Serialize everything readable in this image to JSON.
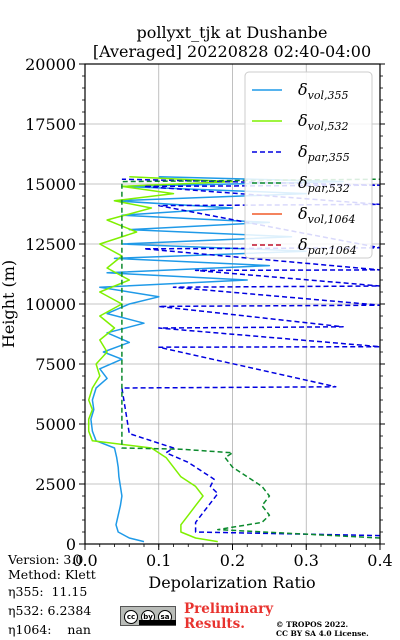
{
  "chart_data": {
    "type": "line",
    "title": [
      "pollyxt_tjk at Dushanbe",
      "[Averaged] 20220828 02:40-04:00"
    ],
    "xlabel": "Depolarization Ratio",
    "ylabel": "Height (m)",
    "xlim": [
      0,
      0.4
    ],
    "ylim": [
      0,
      20000
    ],
    "xticks": [
      "0.0",
      "0.1",
      "0.2",
      "0.3",
      "0.4"
    ],
    "yticks": [
      "0",
      "2500",
      "5000",
      "7500",
      "10000",
      "12500",
      "15000",
      "17500",
      "20000"
    ],
    "xtick_values": [
      0,
      0.1,
      0.2,
      0.3,
      0.4
    ],
    "ytick_values": [
      0,
      2500,
      5000,
      7500,
      10000,
      12500,
      15000,
      17500,
      20000
    ],
    "grid": true,
    "legend_position": "top-right",
    "series": [
      {
        "name": "δvol,355",
        "label_main": "δ",
        "label_sub": "vol,355",
        "color": "#1f9ae8",
        "dash": "solid",
        "points": [
          [
            0.08,
            100
          ],
          [
            0.06,
            250
          ],
          [
            0.045,
            500
          ],
          [
            0.042,
            800
          ],
          [
            0.045,
            1200
          ],
          [
            0.048,
            1600
          ],
          [
            0.05,
            2000
          ],
          [
            0.048,
            2400
          ],
          [
            0.046,
            2800
          ],
          [
            0.045,
            3200
          ],
          [
            0.043,
            3600
          ],
          [
            0.04,
            4000
          ],
          [
            0.015,
            4300
          ],
          [
            0.01,
            4700
          ],
          [
            0.008,
            5200
          ],
          [
            0.012,
            5600
          ],
          [
            0.01,
            6000
          ],
          [
            0.015,
            6500
          ],
          [
            0.03,
            6900
          ],
          [
            0.02,
            7300
          ],
          [
            0.05,
            7700
          ],
          [
            0.025,
            8000
          ],
          [
            0.06,
            8400
          ],
          [
            0.03,
            8800
          ],
          [
            0.08,
            9200
          ],
          [
            0.03,
            9600
          ],
          [
            0.06,
            10000
          ],
          [
            0.1,
            10300
          ],
          [
            0.02,
            10700
          ],
          [
            0.22,
            11000
          ],
          [
            0.03,
            11300
          ],
          [
            0.25,
            11600
          ],
          [
            0.04,
            11900
          ],
          [
            0.3,
            12200
          ],
          [
            0.05,
            12500
          ],
          [
            0.28,
            12800
          ],
          [
            0.06,
            13100
          ],
          [
            0.25,
            13400
          ],
          [
            0.05,
            13700
          ],
          [
            0.2,
            14000
          ],
          [
            0.04,
            14300
          ],
          [
            0.3,
            14600
          ],
          [
            0.05,
            14900
          ],
          [
            0.35,
            15100
          ],
          [
            0.1,
            15300
          ]
        ]
      },
      {
        "name": "δvol,532",
        "label_main": "δ",
        "label_sub": "vol,532",
        "color": "#7ff000",
        "dash": "solid",
        "points": [
          [
            0.18,
            100
          ],
          [
            0.15,
            250
          ],
          [
            0.13,
            500
          ],
          [
            0.13,
            800
          ],
          [
            0.14,
            1200
          ],
          [
            0.15,
            1600
          ],
          [
            0.16,
            2000
          ],
          [
            0.15,
            2400
          ],
          [
            0.13,
            2800
          ],
          [
            0.12,
            3200
          ],
          [
            0.11,
            3600
          ],
          [
            0.09,
            4000
          ],
          [
            0.01,
            4300
          ],
          [
            0.005,
            4700
          ],
          [
            0.005,
            5200
          ],
          [
            0.01,
            5600
          ],
          [
            0.005,
            6000
          ],
          [
            0.01,
            6500
          ],
          [
            0.02,
            7000
          ],
          [
            0.015,
            7500
          ],
          [
            0.03,
            8000
          ],
          [
            0.02,
            8500
          ],
          [
            0.04,
            9000
          ],
          [
            0.02,
            9500
          ],
          [
            0.05,
            10000
          ],
          [
            0.02,
            10500
          ],
          [
            0.06,
            11000
          ],
          [
            0.03,
            11500
          ],
          [
            0.05,
            12000
          ],
          [
            0.02,
            12500
          ],
          [
            0.07,
            13000
          ],
          [
            0.03,
            13500
          ],
          [
            0.09,
            14000
          ],
          [
            0.04,
            14300
          ],
          [
            0.12,
            14600
          ],
          [
            0.05,
            14900
          ],
          [
            0.2,
            15100
          ],
          [
            0.06,
            15300
          ]
        ]
      },
      {
        "name": "δpar,355",
        "label_main": "δ",
        "label_sub": "par,355",
        "color": "#0000e0",
        "dash": "dashed",
        "points": [
          [
            0.4,
            350
          ],
          [
            0.15,
            500
          ],
          [
            0.15,
            900
          ],
          [
            0.16,
            1300
          ],
          [
            0.17,
            1700
          ],
          [
            0.18,
            2100
          ],
          [
            0.17,
            2400
          ],
          [
            0.175,
            2700
          ],
          [
            0.16,
            3000
          ],
          [
            0.14,
            3400
          ],
          [
            0.11,
            3800
          ],
          [
            0.12,
            4000
          ],
          [
            0.06,
            4600
          ],
          [
            0.05,
            6500
          ],
          [
            0.34,
            6550
          ],
          [
            0.1,
            8200
          ],
          [
            0.4,
            8220
          ],
          [
            0.1,
            9000
          ],
          [
            0.35,
            9050
          ],
          [
            0.1,
            9900
          ],
          [
            0.4,
            9950
          ],
          [
            0.12,
            10700
          ],
          [
            0.4,
            10750
          ],
          [
            0.15,
            11400
          ],
          [
            0.4,
            11420
          ],
          [
            0.08,
            12300
          ],
          [
            0.4,
            12340
          ],
          [
            0.1,
            14100
          ],
          [
            0.4,
            14150
          ],
          [
            0.08,
            14900
          ],
          [
            0.4,
            14950
          ],
          [
            0.05,
            15200
          ]
        ]
      },
      {
        "name": "δpar,532",
        "label_main": "δ",
        "label_sub": "par,532",
        "color": "#0c8a2d",
        "dash": "dashed",
        "points": [
          [
            0.4,
            250
          ],
          [
            0.18,
            600
          ],
          [
            0.24,
            900
          ],
          [
            0.25,
            1200
          ],
          [
            0.24,
            1600
          ],
          [
            0.25,
            2000
          ],
          [
            0.24,
            2400
          ],
          [
            0.22,
            2800
          ],
          [
            0.2,
            3200
          ],
          [
            0.19,
            3600
          ],
          [
            0.2,
            3800
          ],
          [
            0.13,
            3950
          ],
          [
            0.05,
            4000
          ],
          [
            0.05,
            15100
          ],
          [
            0.4,
            15200
          ]
        ]
      },
      {
        "name": "δvol,1064",
        "label_main": "δ",
        "label_sub": "vol,1064",
        "color": "#f05a28",
        "dash": "solid",
        "points": []
      },
      {
        "name": "δpar,1064",
        "label_main": "δ",
        "label_sub": "par,1064",
        "color": "#c0102a",
        "dash": "dashed",
        "points": []
      }
    ]
  },
  "info": {
    "version": "Version: 3.0",
    "method": "Method: Klett",
    "eta355_label": "η355:",
    "eta355_value": "11.15",
    "eta532_label": "η532:",
    "eta532_value": "6.2384",
    "eta1064_label": "η1064:",
    "eta1064_value": "nan"
  },
  "footer": {
    "preliminary_line1": "Preliminary",
    "preliminary_line2": "Results.",
    "copyright_line1": "© TROPOS 2022.",
    "copyright_line2": "CC BY SA 4.0 License.",
    "license_badge": "cc by sa",
    "badge_icons": [
      "cc",
      "by",
      "sa"
    ]
  }
}
